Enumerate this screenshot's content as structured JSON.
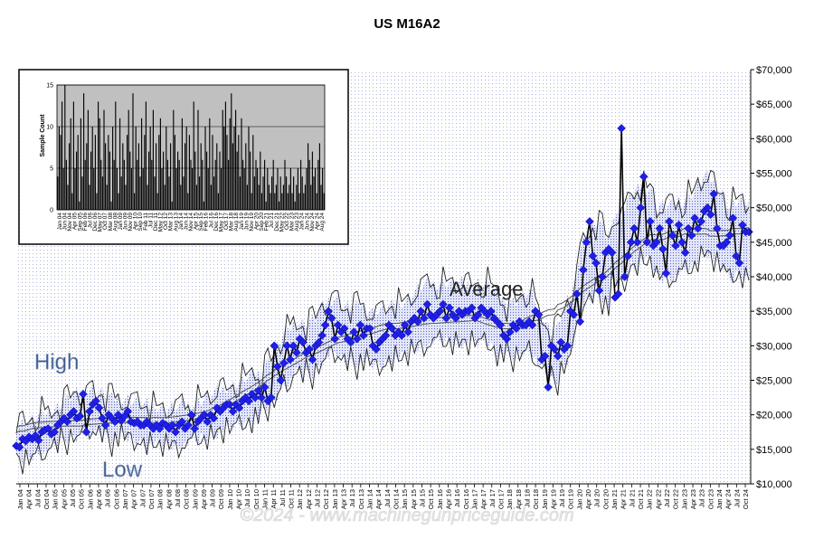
{
  "chart_data": {
    "type": "line",
    "title": "US M16A2",
    "ylim": [
      10000,
      70000
    ],
    "y_ticks": [
      "$10,000",
      "$15,000",
      "$20,000",
      "$25,000",
      "$30,000",
      "$35,000",
      "$40,000",
      "$45,000",
      "$50,000",
      "$55,000",
      "$60,000",
      "$65,000",
      "$70,000"
    ],
    "x_labels": [
      "Jan 04",
      "Apr 04",
      "Jul 04",
      "Oct 04",
      "Jan 05",
      "Apr 05",
      "Jul 05",
      "Oct 05",
      "Jan 06",
      "Apr 06",
      "Jul 06",
      "Oct 06",
      "Jan 07",
      "Apr 07",
      "Jul 07",
      "Oct 07",
      "Jan 08",
      "Apr 08",
      "Jul 08",
      "Oct 08",
      "Jan 09",
      "Apr 09",
      "Jul 09",
      "Oct 09",
      "Jan 10",
      "Apr 10",
      "Jul 10",
      "Oct 10",
      "Jan 11",
      "Apr 11",
      "Jul 11",
      "Oct 11",
      "Jan 12",
      "Apr 12",
      "Jul 12",
      "Oct 12",
      "Jan 13",
      "Apr 13",
      "Jul 13",
      "Oct 13",
      "Jan 14",
      "Apr 14",
      "Jul 14",
      "Oct 14",
      "Jan 15",
      "Apr 15",
      "Jul 15",
      "Oct 15",
      "Jan 16",
      "Apr 16",
      "Jul 16",
      "Oct 16",
      "Jan 17",
      "Apr 17",
      "Jul 17",
      "Oct 17",
      "Jan 18",
      "Apr 18",
      "Jul 18",
      "Oct 18",
      "Jan 19",
      "Apr 19",
      "Jul 19",
      "Oct 19",
      "Jan 20",
      "Apr 20",
      "Jul 20",
      "Oct 20",
      "Jan 21",
      "Apr 21",
      "Jul 21",
      "Oct 21",
      "Jan 22",
      "Apr 22",
      "Jul 22",
      "Oct 22",
      "Jan 23",
      "Apr 23",
      "Jul 23",
      "Oct 23",
      "Jan 24",
      "Apr 24",
      "Jul 24",
      "Oct 24"
    ],
    "annotations": {
      "high": "High",
      "low": "Low",
      "average": "Average"
    },
    "watermark": "©2024 - www.machinegunpriceguide.com",
    "series": [
      {
        "name": "Average",
        "values": [
          15500,
          15300,
          16500,
          16200,
          16800,
          16500,
          17000,
          16300,
          17500,
          17800,
          18000,
          17200,
          17500,
          18500,
          19000,
          19500,
          19000,
          20000,
          20500,
          19500,
          19800,
          23000,
          17500,
          20500,
          21500,
          22000,
          21000,
          19500,
          18500,
          20000,
          19500,
          19000,
          20000,
          19200,
          19800,
          20500,
          19000,
          18800,
          19000,
          18500,
          18500,
          19000,
          18500,
          18000,
          18500,
          18000,
          18800,
          18500,
          18000,
          18500,
          17500,
          18500,
          19000,
          18000,
          18500,
          20000,
          18000,
          19000,
          19500,
          20000,
          19000,
          20000,
          19500,
          21000,
          20500,
          21000,
          21500,
          21500,
          20500,
          21500,
          21000,
          22000,
          22500,
          22000,
          23000,
          22500,
          23500,
          22500,
          24000,
          22000,
          22500,
          30000,
          27000,
          25000,
          27500,
          30000,
          28000,
          30000,
          29000,
          31000,
          30500,
          29000,
          29500,
          28000,
          30000,
          30500,
          31500,
          33000,
          35000,
          34000,
          31000,
          33000,
          32000,
          32500,
          31000,
          30500,
          32000,
          31000,
          33000,
          31500,
          32500,
          32500,
          30000,
          29500,
          30500,
          31000,
          31500,
          33000,
          32500,
          31500,
          32000,
          31500,
          33000,
          32000,
          33500,
          34000,
          33500,
          35000,
          34000,
          36000,
          34500,
          34000,
          34500,
          35000,
          36000,
          34000,
          35500,
          34500,
          34000,
          35000,
          34500,
          35000,
          35000,
          35500,
          34000,
          34500,
          35500,
          35000,
          34500,
          35000,
          34000,
          33500,
          33000,
          31500,
          31000,
          32000,
          33000,
          32500,
          33500,
          33000,
          33000,
          33500,
          33000,
          35000,
          34500,
          28000,
          28500,
          24000,
          30000,
          29500,
          28500,
          30500,
          29500,
          30000,
          35000,
          34500,
          37500,
          33500,
          41000,
          45000,
          48000,
          43000,
          42000,
          38000,
          40000,
          43500,
          44000,
          43500,
          37000,
          37500,
          61500,
          40000,
          43000,
          45000,
          47000,
          45000,
          50000,
          54500,
          45000,
          48000,
          44500,
          45000,
          47000,
          44000,
          40500,
          48000,
          46000,
          44500,
          47500,
          45000,
          43500,
          47000,
          46000,
          48500,
          47000,
          48000,
          49500,
          50000,
          49000,
          52000,
          47000,
          44500,
          44500,
          45000,
          46000,
          48500,
          43000,
          42000,
          47500,
          46500,
          46500
        ]
      }
    ],
    "inset": {
      "type": "bar",
      "ylabel": "Sample Count",
      "ylim": [
        0,
        15
      ],
      "y_ticks": [
        "0",
        "5",
        "10",
        "15"
      ],
      "x_labels": [
        "Jan 04",
        "Jun 04",
        "Nov 04",
        "Apr 05",
        "Sep 05",
        "Feb 06",
        "Jul 06",
        "Dec 06",
        "May 07",
        "Oct 07",
        "Mar 08",
        "Aug 08",
        "Jan 09",
        "Jun 09",
        "Nov 09",
        "Apr 10",
        "Sep 10",
        "Feb 11",
        "Jul 11",
        "Dec 11",
        "May 12",
        "Oct 12",
        "Mar 13",
        "Aug 13",
        "Jan 14",
        "Jun 14",
        "Nov 14",
        "Apr 15",
        "Sep 15",
        "Feb 16",
        "Jul 16",
        "Dec 16",
        "May 17",
        "Oct 17",
        "Mar 18",
        "Aug 18",
        "Jan 19",
        "Jun 19",
        "Nov 19",
        "Apr 20",
        "Sep 20",
        "Feb 21",
        "Jul 21",
        "Dec 21",
        "May 22",
        "Oct 22",
        "Mar 23",
        "Aug 23",
        "Jan 24",
        "Jun 24",
        "Nov 24",
        "Apr 24",
        "Aug 24"
      ],
      "values": [
        4,
        10,
        9,
        13,
        5,
        15,
        6,
        3,
        8,
        11,
        2,
        13,
        5,
        7,
        9,
        1,
        11,
        4,
        14,
        6,
        8,
        12,
        3,
        7,
        10,
        5,
        9,
        2,
        13,
        11,
        6,
        4,
        12,
        8,
        3,
        9,
        7,
        1,
        10,
        6,
        13,
        5,
        2,
        11,
        4,
        8,
        6,
        3,
        9,
        12,
        7,
        5,
        14,
        2,
        10,
        6,
        8,
        4,
        11,
        5,
        9,
        13,
        3,
        7,
        10,
        6,
        12,
        4,
        8,
        2,
        9,
        11,
        5,
        7,
        3,
        10,
        6,
        4,
        8,
        1,
        12,
        9,
        5,
        7,
        6,
        3,
        11,
        4,
        8,
        10,
        2,
        9,
        6,
        5,
        13,
        7,
        3,
        12,
        4,
        8,
        6,
        1,
        10,
        7,
        5,
        11,
        3,
        9,
        4,
        6,
        8,
        2,
        7,
        5,
        12,
        10,
        13,
        9,
        6,
        11,
        14,
        8,
        10,
        12,
        7,
        9,
        4,
        11,
        6,
        5,
        8,
        3,
        10,
        7,
        2,
        9,
        4,
        6,
        5,
        3,
        7,
        2,
        4,
        6,
        1,
        5,
        3,
        2,
        4,
        6,
        2,
        3,
        5,
        1,
        4,
        2,
        3,
        6,
        4,
        2,
        3,
        5,
        2,
        4,
        1,
        3,
        5,
        2,
        6,
        4,
        2,
        3,
        5,
        8,
        6,
        3,
        7,
        4,
        5,
        2,
        6,
        8,
        3,
        5,
        2
      ]
    }
  }
}
